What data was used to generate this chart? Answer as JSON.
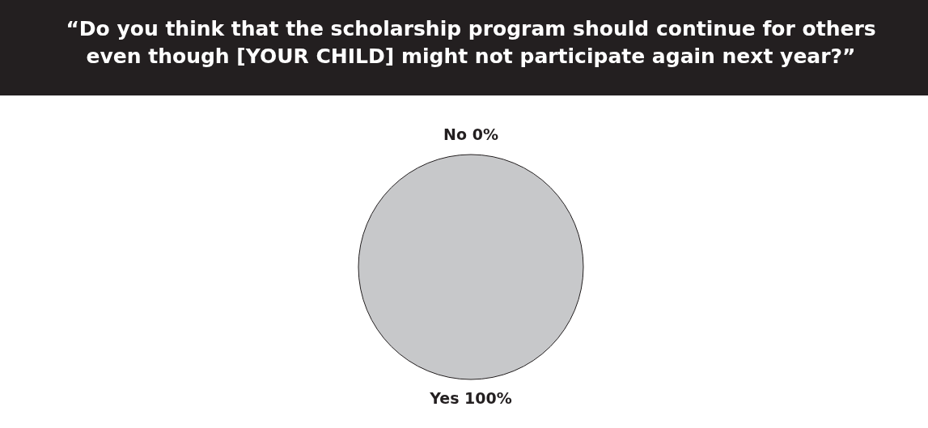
{
  "chart_data": {
    "type": "pie",
    "title": "“Do you think that the scholarship program should continue for others even though [YOUR CHILD] might not participate again next year?”",
    "categories": [
      "No",
      "Yes"
    ],
    "values": [
      0,
      100
    ],
    "value_labels": [
      "0%",
      "100%"
    ],
    "colors": [
      "#c7c8ca",
      "#c7c8ca"
    ]
  }
}
